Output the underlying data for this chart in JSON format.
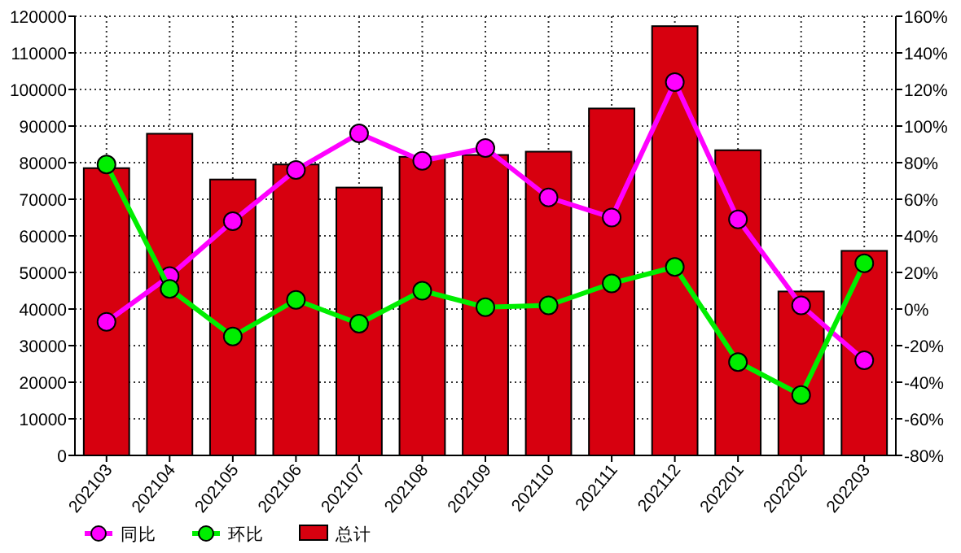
{
  "chart_data": {
    "type": "bar",
    "categories": [
      "202103",
      "202104",
      "202105",
      "202106",
      "202107",
      "202108",
      "202109",
      "202110",
      "202111",
      "202112",
      "202201",
      "202202",
      "202203"
    ],
    "series": [
      {
        "name": "同比",
        "type": "line",
        "axis": "y2",
        "color": "#ff00ff",
        "values": [
          -7,
          18,
          48,
          76,
          96,
          81,
          88,
          61,
          50,
          124,
          49,
          2,
          -28
        ]
      },
      {
        "name": "环比",
        "type": "line",
        "axis": "y2",
        "color": "#00ee00",
        "values": [
          79,
          11,
          -15,
          5,
          -8,
          10,
          1,
          2,
          14,
          23,
          -29,
          -47,
          25
        ]
      },
      {
        "name": "总计",
        "color": "#d7000f",
        "values": [
          78500,
          87900,
          75400,
          79500,
          73200,
          81600,
          82100,
          83000,
          94800,
          117300,
          83400,
          44800,
          55900
        ]
      }
    ],
    "ylim": [
      0,
      120000
    ],
    "yticks": [
      0,
      10000,
      20000,
      30000,
      40000,
      50000,
      60000,
      70000,
      80000,
      90000,
      100000,
      110000,
      120000
    ],
    "y2lim": [
      -80,
      160
    ],
    "y2ticks": [
      {
        "value": -80,
        "label": "-80%"
      },
      {
        "value": -60,
        "label": "-60%"
      },
      {
        "value": -40,
        "label": "-40%"
      },
      {
        "value": -20,
        "label": "-20%"
      },
      {
        "value": 0,
        "label": "0%"
      },
      {
        "value": 20,
        "label": "20%"
      },
      {
        "value": 40,
        "label": "40%"
      },
      {
        "value": 60,
        "label": "60%"
      },
      {
        "value": 80,
        "label": "80%"
      },
      {
        "value": 100,
        "label": "100%"
      },
      {
        "value": 120,
        "label": "120%"
      },
      {
        "value": 140,
        "label": "140%"
      },
      {
        "value": 160,
        "label": "160%"
      }
    ],
    "grid": true,
    "legend": "bottom",
    "marker": "circle",
    "line_style": "solid"
  }
}
